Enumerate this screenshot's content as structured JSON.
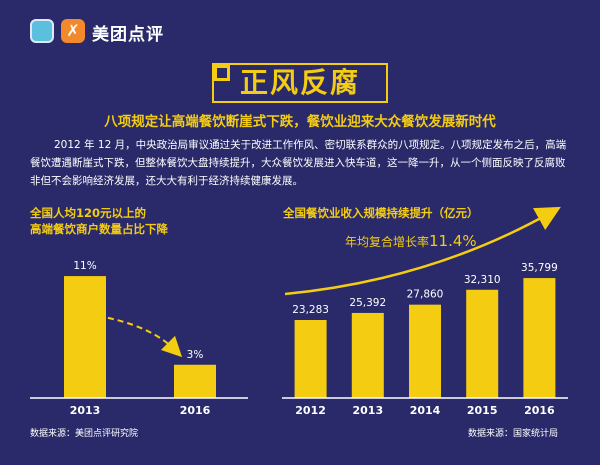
{
  "header": {
    "brand": "美团点评",
    "logo_glyph": "✗"
  },
  "title": "正风反腐",
  "subtitle": "八项规定让高端餐饮断崖式下跌，餐饮业迎来大众餐饮发展新时代",
  "intro": "2012 年 12 月，中央政治局审议通过关于改进工作作风、密切联系群众的八项规定。八项规定发布之后，高端餐饮遭遇断崖式下跌，但整体餐饮大盘持续提升，大众餐饮发展进入快车道，这一降一升，从一个侧面反映了反腐败非但不会影响经济发展，还大大有利于经济持续健康发展。",
  "colors": {
    "background": "#2a2a6a",
    "accent": "#f4cc12",
    "text": "#ffffff",
    "bar": "#f4cc12"
  },
  "left_chart": {
    "title_line1": "全国人均120元以上的",
    "title_line2": "高端餐饮商户数量占比下降",
    "source": "数据来源：美团点评研究院"
  },
  "right_chart": {
    "title": "全国餐饮业收入规模持续提升（亿元）",
    "growth_label": "年均复合增长率",
    "growth_value": "11.4%",
    "source": "数据来源：国家统计局"
  },
  "chart_data": [
    {
      "type": "bar",
      "title": "全国人均120元以上的高端餐饮商户数量占比下降",
      "categories": [
        "2013",
        "2016"
      ],
      "values": [
        11,
        3
      ],
      "value_labels": [
        "11%",
        "3%"
      ],
      "unit": "%",
      "ylim": [
        0,
        12
      ],
      "grid": false
    },
    {
      "type": "bar",
      "title": "全国餐饮业收入规模持续提升（亿元）",
      "categories": [
        "2012",
        "2013",
        "2014",
        "2015",
        "2016"
      ],
      "values": [
        23283,
        25392,
        27860,
        32310,
        35799
      ],
      "value_labels": [
        "23,283",
        "25,392",
        "27,860",
        "32,310",
        "35,799"
      ],
      "annotation": "年均复合增长率11.4%",
      "ylim": [
        0,
        40000
      ],
      "grid": false
    }
  ]
}
